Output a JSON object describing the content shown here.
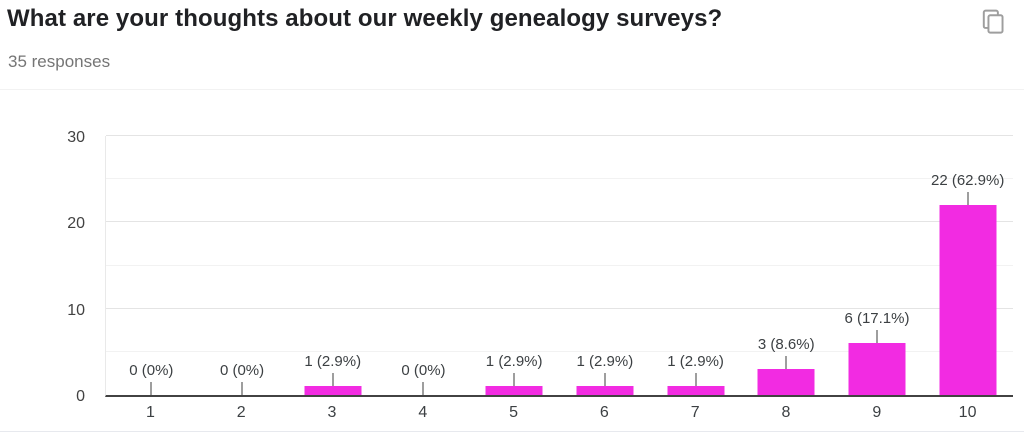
{
  "header": {
    "title": "What are your thoughts about our weekly genealogy surveys?",
    "responses_label": "35 responses"
  },
  "icons": {
    "copy": "copy-icon"
  },
  "colors": {
    "bar": "#f22be2",
    "title_text": "#202124",
    "subtitle_text": "#757575",
    "axis_text": "#424242",
    "baseline": "#424242",
    "gridline_major": "#e4e4e4",
    "gridline_minor": "#f2f2f2",
    "leader_line": "#9e9e9e",
    "icon_gray": "#9e9e9e"
  },
  "chart_data": {
    "type": "bar",
    "title": "What are your thoughts about our weekly genealogy surveys?",
    "subtitle": "35 responses",
    "categories": [
      "1",
      "2",
      "3",
      "4",
      "5",
      "6",
      "7",
      "8",
      "9",
      "10"
    ],
    "values": [
      0,
      0,
      1,
      0,
      1,
      1,
      1,
      3,
      6,
      22
    ],
    "data_labels": [
      "0 (0%)",
      "0 (0%)",
      "1 (2.9%)",
      "0 (0%)",
      "1 (2.9%)",
      "1 (2.9%)",
      "1 (2.9%)",
      "3 (8.6%)",
      "6 (17.1%)",
      "22 (62.9%)"
    ],
    "total_responses": 35,
    "xlabel": "",
    "ylabel": "",
    "ylim": [
      0,
      30
    ],
    "yticks": [
      0,
      10,
      20,
      30
    ],
    "minor_ticks": [
      5,
      15,
      25
    ],
    "bar_color": "#f22be2",
    "grid": true,
    "legend": false
  }
}
